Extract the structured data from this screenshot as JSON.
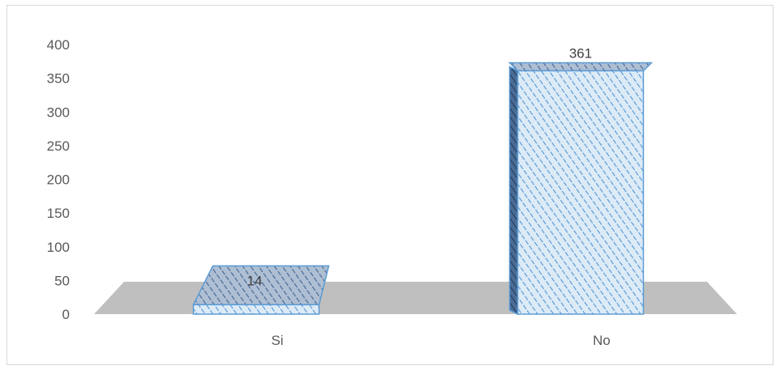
{
  "chart_data": {
    "type": "bar",
    "style": "3d-column",
    "categories": [
      "Si",
      "No"
    ],
    "values": [
      14,
      361
    ],
    "data_labels": [
      "14",
      "361"
    ],
    "ylim": [
      0,
      400
    ],
    "yticks": [
      0,
      50,
      100,
      150,
      200,
      250,
      300,
      350,
      400
    ],
    "ytick_labels": [
      "0",
      "50",
      "100",
      "150",
      "200",
      "250",
      "300",
      "350",
      "400"
    ],
    "grid": false,
    "legend": "none",
    "title": "",
    "xlabel": "",
    "ylabel": "",
    "colors": {
      "bar_stroke": "#5b9bd5",
      "bar_fill": "#ddebf7",
      "bar_hatch": "#5b9bd5",
      "floor": "#bfbfbf",
      "axis_text": "#595959",
      "data_label_text": "#404040",
      "frame_border": "#d9d9d9"
    }
  }
}
